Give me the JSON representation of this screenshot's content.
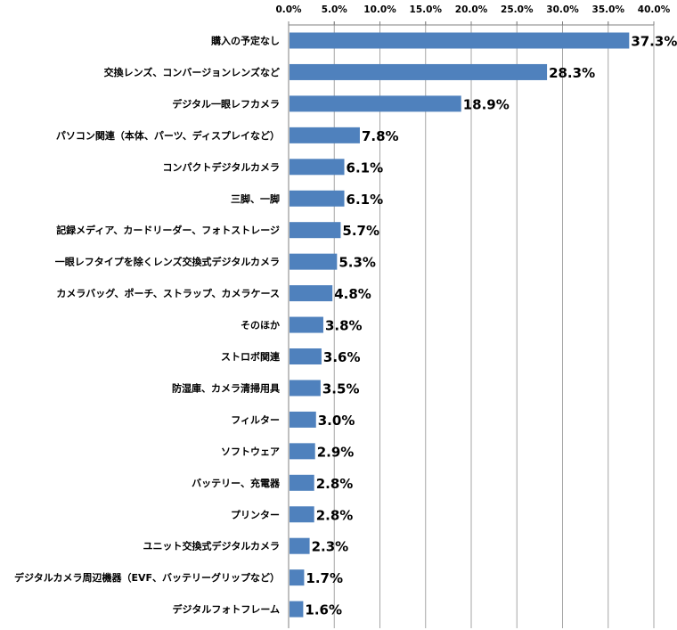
{
  "chart_data": {
    "type": "bar",
    "orientation": "horizontal",
    "categories": [
      "購入の予定なし",
      "交換レンズ、コンバージョンレンズなど",
      "デジタル一眼レフカメラ",
      "パソコン関連（本体、パーツ、ディスプレイなど）",
      "コンパクトデジタルカメラ",
      "三脚、一脚",
      "記録メディア、カードリーダー、フォトストレージ",
      "一眼レフタイプを除くレンズ交換式デジタルカメラ",
      "カメラバッグ、ポーチ、ストラップ、カメラケース",
      "そのほか",
      "ストロボ関連",
      "防湿庫、カメラ清掃用具",
      "フィルター",
      "ソフトウェア",
      "バッテリー、充電器",
      "プリンター",
      "ユニット交換式デジタルカメラ",
      "デジタルカメラ周辺機器（EVF、バッテリーグリップなど）",
      "デジタルフォトフレーム"
    ],
    "values": [
      37.3,
      28.3,
      18.9,
      7.8,
      6.1,
      6.1,
      5.7,
      5.3,
      4.8,
      3.8,
      3.6,
      3.5,
      3.0,
      2.9,
      2.8,
      2.8,
      2.3,
      1.7,
      1.6
    ],
    "data_labels": [
      "37.3%",
      "28.3%",
      "18.9%",
      "7.8%",
      "6.1%",
      "6.1%",
      "5.7%",
      "5.3%",
      "4.8%",
      "3.8%",
      "3.6%",
      "3.5%",
      "3.0%",
      "2.9%",
      "2.8%",
      "2.8%",
      "2.3%",
      "1.7%",
      "1.6%"
    ],
    "xlim": [
      0,
      40
    ],
    "x_ticks": [
      0,
      5,
      10,
      15,
      20,
      25,
      30,
      35,
      40
    ],
    "x_tick_labels": [
      "0.0%",
      "5.0%",
      "10.0%",
      "15.0%",
      "20.0%",
      "25.0%",
      "30.0%",
      "35.0%",
      "40.0%"
    ],
    "axis_position": "top",
    "grid": true,
    "legend": "none",
    "bar_color": "#4f81bd",
    "grid_color": "#a6a6a6"
  }
}
